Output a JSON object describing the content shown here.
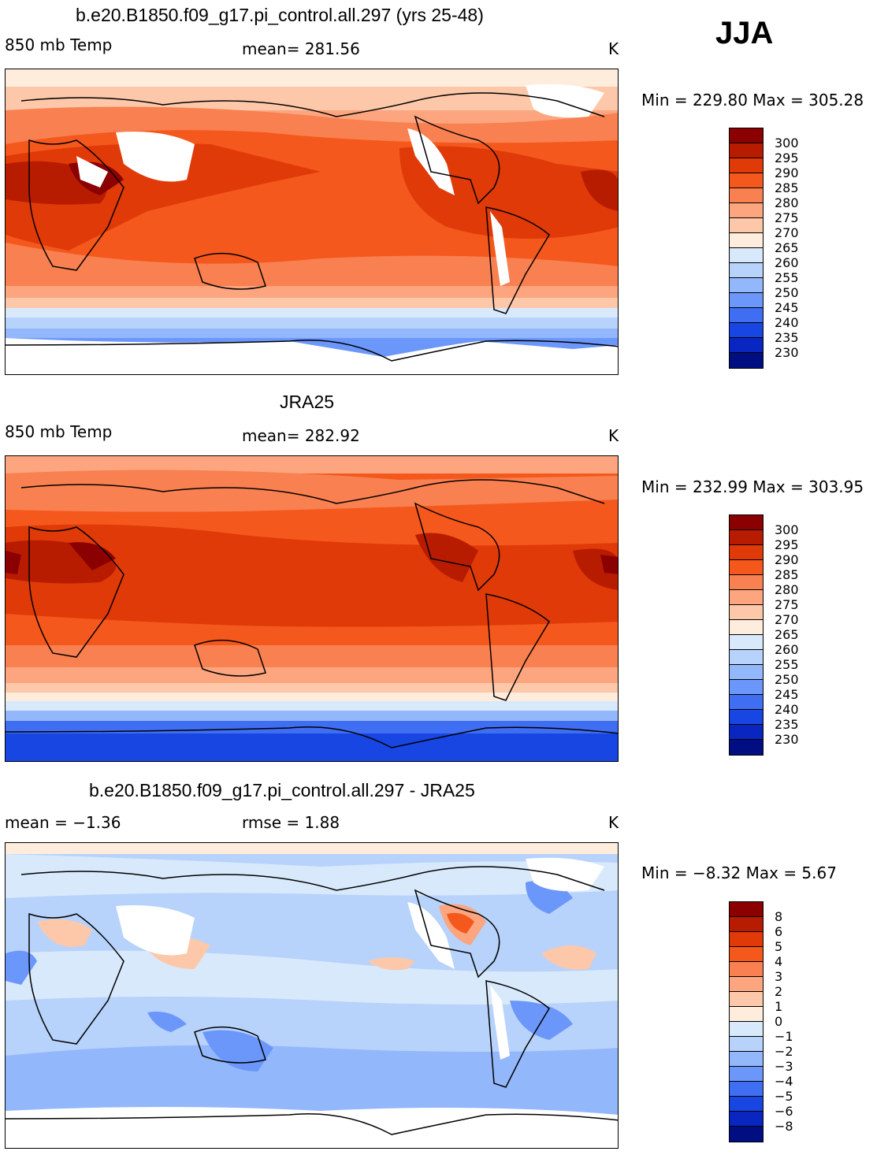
{
  "season": "JJA",
  "palette": {
    "t300": "#8b0000",
    "t295": "#b81c00",
    "t290": "#df3a08",
    "t285": "#f4581c",
    "t280": "#f98050",
    "t275": "#fca57f",
    "t270": "#fdc8aa",
    "t265": "#feecdd",
    "t260": "#d8e9fb",
    "t255": "#b7d2fb",
    "t250": "#93b7fb",
    "t245": "#6c97fa",
    "t240": "#3f6ef2",
    "t235": "#1746e3",
    "t230": "#0a26c0",
    "tmin": "#000e82"
  },
  "panels": [
    {
      "title": "b.e20.B1850.f09_g17.pi_control.all.297 (yrs 25-48)",
      "left_label": "850 mb Temp",
      "center_label": "mean=  281.56",
      "units": "K",
      "minmax": "Min = 229.80 Max = 305.28",
      "colorbar_labels": [
        "300",
        "295",
        "290",
        "285",
        "280",
        "275",
        "270",
        "265",
        "260",
        "255",
        "250",
        "245",
        "240",
        "235",
        "230"
      ]
    },
    {
      "title": "JRA25",
      "left_label": "850 mb Temp",
      "center_label": "mean=  282.92",
      "units": "K",
      "minmax": "Min = 232.99 Max = 303.95",
      "colorbar_labels": [
        "300",
        "295",
        "290",
        "285",
        "280",
        "275",
        "270",
        "265",
        "260",
        "255",
        "250",
        "245",
        "240",
        "235",
        "230"
      ]
    },
    {
      "title": "b.e20.B1850.f09_g17.pi_control.all.297 - JRA25",
      "left_label": "mean =   −1.36",
      "center_label": "rmse =    1.88",
      "units": "K",
      "minmax": "Min =   −8.32 Max =    5.67",
      "colorbar_labels": [
        "8",
        "6",
        "5",
        "4",
        "3",
        "2",
        "1",
        "0",
        "−1",
        "−2",
        "−3",
        "−4",
        "−5",
        "−6",
        "−8"
      ]
    }
  ]
}
